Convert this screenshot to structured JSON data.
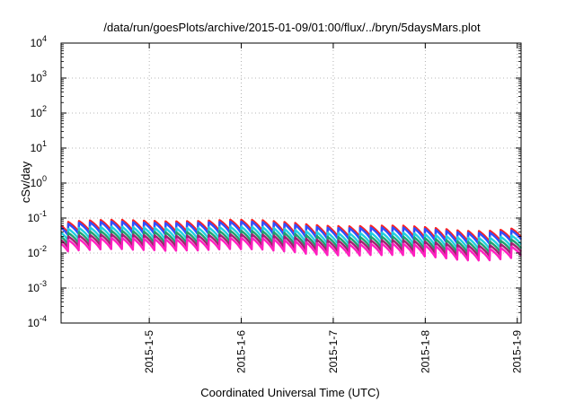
{
  "chart_data": {
    "type": "line",
    "title": "/data/run/goesPlots/archive/2015-01-09/01:00/flux/../bryn/5daysMars.plot",
    "xlabel": "Coordinated Universal Time (UTC)",
    "ylabel": "cSv/day",
    "y_scale": "log",
    "ylim": [
      0.0001,
      10000
    ],
    "y_ticks": [
      {
        "base": "10",
        "exp": "-4"
      },
      {
        "base": "10",
        "exp": "-3"
      },
      {
        "base": "10",
        "exp": "-2"
      },
      {
        "base": "10",
        "exp": "-1"
      },
      {
        "base": "10",
        "exp": "0"
      },
      {
        "base": "10",
        "exp": "1"
      },
      {
        "base": "10",
        "exp": "2"
      },
      {
        "base": "10",
        "exp": "3"
      },
      {
        "base": "10",
        "exp": "4"
      }
    ],
    "xlim": [
      "2015-01-04 01:00",
      "2015-01-09 01:00"
    ],
    "x_ticks": [
      "2015-1-5",
      "2015-1-6",
      "2015-1-7",
      "2015-1-8",
      "2015-1-9"
    ],
    "grid": true,
    "legend": "none",
    "pulse_period_hours": 2.82,
    "series": [
      {
        "color": "#ff2020",
        "base_low": 0.042,
        "base_high": 0.088
      },
      {
        "color": "#3050ff",
        "base_low": 0.036,
        "base_high": 0.078
      },
      {
        "color": "#20d0e0",
        "base_low": 0.026,
        "base_high": 0.056
      },
      {
        "color": "#20a070",
        "base_low": 0.02,
        "base_high": 0.043
      },
      {
        "color": "#a02070",
        "base_low": 0.016,
        "base_high": 0.034
      },
      {
        "color": "#ff20c0",
        "base_low": 0.0125,
        "base_high": 0.027
      }
    ]
  }
}
